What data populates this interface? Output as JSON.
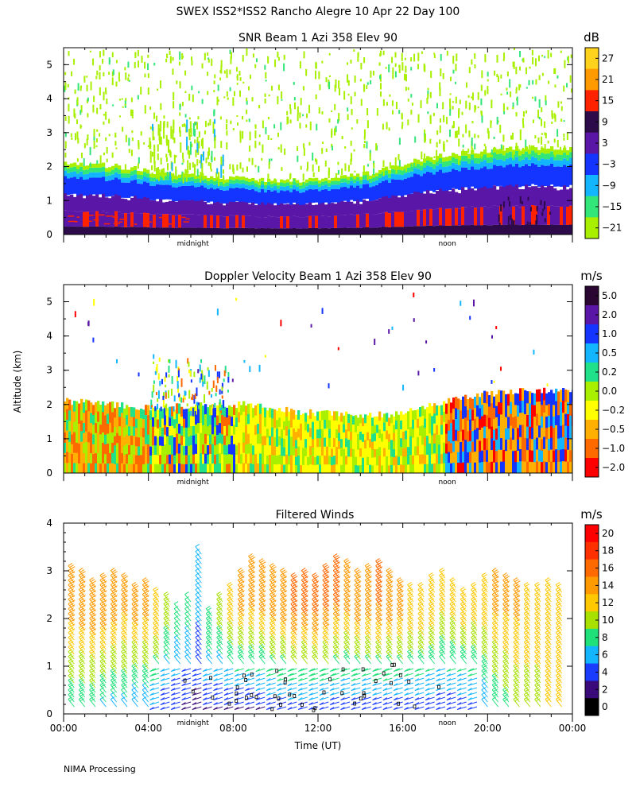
{
  "figure": {
    "title": "SWEX ISS2*ISS2 Rancho Alegre  10 Apr 22 Day 100",
    "y_axis_label": "Altitude (km)",
    "x_axis_label": "Time (UT)",
    "footer": "NIMA Processing"
  },
  "chart_data": [
    {
      "type": "heatmap",
      "title": "SNR Beam 1 Azi 358 Elev 90",
      "ylabel": "Altitude (km)",
      "ylim": [
        0,
        5.5
      ],
      "yticks": [
        "0",
        "1",
        "2",
        "3",
        "4",
        "5"
      ],
      "xlim_hours": [
        0,
        24
      ],
      "inner_labels": [
        "midnight",
        "noon"
      ],
      "colorbar": {
        "unit": "dB",
        "ticks": [
          "27",
          "21",
          "15",
          "9",
          "3",
          "−3",
          "−9",
          "−15",
          "−21"
        ],
        "colors": [
          "#ffd21e",
          "#ff9a00",
          "#ff2200",
          "#2d0b4a",
          "#5a16a6",
          "#1434ff",
          "#13b5ff",
          "#32e67a",
          "#a8f000"
        ]
      },
      "description_levels": {
        "boundary_layer_top_km": [
          2.0,
          1.9,
          1.7,
          1.6,
          1.5,
          1.5,
          1.7,
          2.1,
          2.3,
          2.4,
          2.4
        ]
      }
    },
    {
      "type": "heatmap",
      "title": "Doppler Velocity Beam 1 Azi 358 Elev 90",
      "ylabel": "Altitude (km)",
      "ylim": [
        0,
        5.5
      ],
      "yticks": [
        "0",
        "1",
        "2",
        "3",
        "4",
        "5"
      ],
      "xlim_hours": [
        0,
        24
      ],
      "inner_labels": [
        "midnight",
        "noon"
      ],
      "colorbar": {
        "unit": "m/s",
        "ticks": [
          "5.0",
          "2.0",
          "1.0",
          "0.5",
          "0.2",
          "0.0",
          "−0.2",
          "−0.5",
          "−1.0",
          "−2.0"
        ],
        "colors": [
          "#2a0633",
          "#5a16a6",
          "#1434ff",
          "#13b5ff",
          "#20e08a",
          "#a8f000",
          "#ffff00",
          "#ffb000",
          "#ff6a00",
          "#ff0000"
        ]
      }
    },
    {
      "type": "wind_barbs",
      "title": "Filtered Winds",
      "ylabel": "Altitude (km)",
      "xlabel": "Time (UT)",
      "ylim": [
        0,
        4
      ],
      "yticks": [
        "0",
        "1",
        "2",
        "3",
        "4"
      ],
      "xlim_hours": [
        0,
        24
      ],
      "xticks": [
        "00:00",
        "04:00",
        "08:00",
        "12:00",
        "16:00",
        "20:00",
        "00:00"
      ],
      "inner_labels": [
        "midnight",
        "noon"
      ],
      "colorbar": {
        "unit": "m/s",
        "ticks": [
          "20",
          "18",
          "16",
          "14",
          "12",
          "10",
          "8",
          "6",
          "4",
          "2",
          "0"
        ],
        "colors": [
          "#ff0000",
          "#ff3000",
          "#ff6a00",
          "#ff9a00",
          "#ffc800",
          "#a8e000",
          "#20e07a",
          "#13b5ff",
          "#1a3cff",
          "#3a0a7a",
          "#000000"
        ]
      },
      "column_hours": [
        0.5,
        1.0,
        1.5,
        2.0,
        2.5,
        3.0,
        3.5,
        4.0,
        4.5,
        5.0,
        5.5,
        6.0,
        6.5,
        7.0,
        7.5,
        8.0,
        8.5,
        9.0,
        9.5,
        10.0,
        10.5,
        11.0,
        11.5,
        12.0,
        12.5,
        13.0,
        13.5,
        14.0,
        14.5,
        15.0,
        15.5,
        16.0,
        16.5,
        17.0,
        17.5,
        18.0,
        18.5,
        19.0,
        19.5,
        20.0,
        20.5,
        21.0,
        21.5,
        22.0,
        22.5,
        23.0,
        23.5
      ],
      "top_height_km": [
        3.0,
        2.9,
        2.7,
        2.8,
        2.9,
        2.8,
        2.6,
        2.7,
        2.5,
        2.4,
        2.2,
        2.4,
        3.4,
        2.1,
        2.4,
        2.6,
        2.9,
        3.2,
        3.1,
        3.0,
        2.9,
        2.8,
        2.9,
        2.8,
        3.0,
        3.2,
        3.1,
        2.9,
        3.0,
        3.1,
        2.9,
        2.7,
        2.6,
        2.6,
        2.8,
        2.9,
        2.7,
        2.5,
        2.6,
        2.8,
        2.9,
        2.8,
        2.7,
        2.6,
        2.6,
        2.7,
        2.6
      ],
      "low_speed_ms": [
        7,
        7,
        7,
        6,
        6,
        6,
        5,
        5,
        4,
        3,
        3,
        2,
        2,
        2,
        2,
        2,
        2,
        2,
        2,
        3,
        3,
        3,
        3,
        3,
        3,
        3,
        3,
        3,
        3,
        3,
        3,
        3,
        3,
        3,
        3,
        3,
        3,
        3,
        4,
        5,
        7,
        8,
        9,
        10,
        10,
        11,
        11
      ],
      "high_speed_ms": [
        14,
        14,
        14,
        14,
        14,
        13,
        13,
        13,
        12,
        9,
        7,
        7,
        6,
        8,
        9,
        11,
        13,
        14,
        14,
        14,
        14,
        15,
        15,
        15,
        15,
        15,
        14,
        14,
        14,
        15,
        14,
        13,
        12,
        12,
        12,
        11,
        11,
        11,
        11,
        12,
        13,
        13,
        13,
        12,
        12,
        12,
        12
      ]
    }
  ]
}
